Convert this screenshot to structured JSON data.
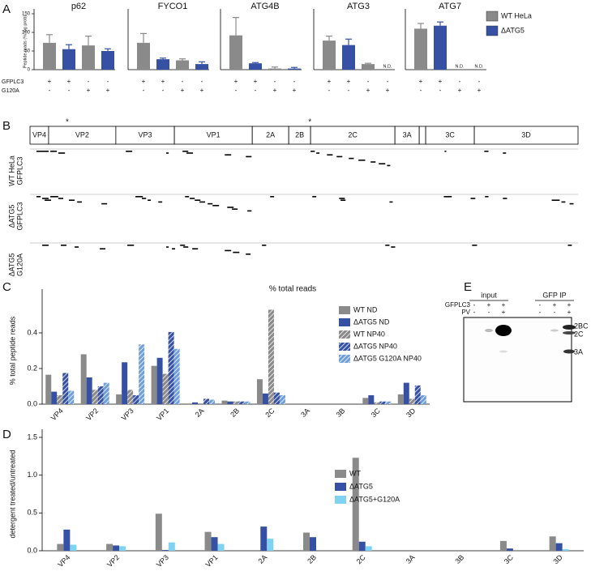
{
  "chart_data": [
    {
      "type": "small_multiples_bar",
      "panel_label": "A",
      "y_label": "Peptide reads (% log prob)",
      "ylim": [
        0,
        150
      ],
      "yticks": [
        0,
        50,
        100,
        150
      ],
      "series": [
        {
          "name": "WT HeLa",
          "color": "#8a8a8a"
        },
        {
          "name": "ΔATG5",
          "color": "#3651a3"
        }
      ],
      "conditions": [
        {
          "name": "GFPLC3",
          "values": [
            "+",
            "+",
            "-",
            "-"
          ]
        },
        {
          "name": "G120A",
          "values": [
            "-",
            "-",
            "+",
            "+"
          ]
        }
      ],
      "subplots": [
        {
          "title": "p62",
          "values": [
            [
              72,
              null,
              65,
              null
            ],
            [
              null,
              55,
              null,
              50
            ]
          ],
          "errors": [
            [
              22,
              null,
              25,
              null
            ],
            [
              null,
              12,
              null,
              6
            ]
          ]
        },
        {
          "title": "FYCO1",
          "values": [
            [
              72,
              null,
              25,
              null
            ],
            [
              null,
              28,
              null,
              15
            ]
          ],
          "errors": [
            [
              25,
              null,
              4,
              null
            ],
            [
              null,
              3,
              null,
              6
            ]
          ]
        },
        {
          "title": "ATG4B",
          "values": [
            [
              92,
              null,
              3,
              null
            ],
            [
              null,
              17,
              null,
              3
            ]
          ],
          "errors": [
            [
              48,
              null,
              4,
              null
            ],
            [
              null,
              2,
              null,
              3
            ]
          ]
        },
        {
          "title": "ATG3",
          "values": [
            [
              78,
              null,
              15,
              null
            ],
            [
              null,
              66,
              null,
              null
            ]
          ],
          "errors": [
            [
              12,
              null,
              2,
              null
            ],
            [
              null,
              16,
              null,
              null
            ]
          ],
          "value_labels": [
            [
              null,
              null,
              null,
              null
            ],
            [
              null,
              null,
              null,
              "N.D."
            ]
          ]
        },
        {
          "title": "ATG7",
          "values": [
            [
              110,
              null,
              null,
              null
            ],
            [
              null,
              118,
              null,
              null
            ]
          ],
          "errors": [
            [
              14,
              null,
              null,
              null
            ],
            [
              null,
              10,
              null,
              null
            ]
          ],
          "value_labels": [
            [
              null,
              null,
              "N.D.",
              null
            ],
            [
              null,
              null,
              null,
              "N.D."
            ]
          ]
        }
      ]
    },
    {
      "type": "genome_map",
      "panel_label": "B",
      "xlim": [
        0,
        2209
      ],
      "segments": [
        {
          "label": "VP4",
          "start": 0,
          "end": 75
        },
        {
          "label": "VP2",
          "start": 75,
          "end": 346
        },
        {
          "label": "VP3",
          "start": 346,
          "end": 582
        },
        {
          "label": "VP1",
          "start": 582,
          "end": 896
        },
        {
          "label": "2A",
          "start": 896,
          "end": 1043
        },
        {
          "label": "2B",
          "start": 1043,
          "end": 1131
        },
        {
          "label": "2C",
          "start": 1131,
          "end": 1471
        },
        {
          "label": "3A",
          "start": 1471,
          "end": 1569
        },
        {
          "label": null,
          "start": 1569,
          "end": 1595
        },
        {
          "label": "3C",
          "start": 1595,
          "end": 1791
        },
        {
          "label": "3D",
          "start": 1791,
          "end": 2209
        }
      ],
      "markers": [
        {
          "label": "*",
          "position": 150
        },
        {
          "label": "*",
          "position": 1128
        }
      ],
      "tracks": [
        {
          "label": [
            "WT HeLa",
            "GFPLC3"
          ],
          "peptides": [
            [
              26,
              75
            ],
            [
              82,
              108
            ],
            [
              114,
              141
            ],
            [
              386,
              412
            ],
            [
              549,
              559
            ],
            [
              615,
              638
            ],
            [
              631,
              657
            ],
            [
              785,
              811
            ],
            [
              870,
              893
            ],
            [
              1131,
              1148
            ],
            [
              1154,
              1167
            ],
            [
              1197,
              1220
            ],
            [
              1236,
              1259
            ],
            [
              1285,
              1305
            ],
            [
              1324,
              1351
            ],
            [
              1373,
              1393
            ],
            [
              1406,
              1432
            ],
            [
              1439,
              1452
            ],
            [
              1671,
              1678
            ],
            [
              1831,
              1848
            ],
            [
              1906,
              1919
            ]
          ]
        },
        {
          "label": [
            "ΔATG5",
            "GFPLC3"
          ],
          "peptides": [
            [
              26,
              43
            ],
            [
              49,
              75
            ],
            [
              59,
              85
            ],
            [
              82,
              114
            ],
            [
              114,
              134
            ],
            [
              157,
              180
            ],
            [
              190,
              209
            ],
            [
              288,
              311
            ],
            [
              425,
              455
            ],
            [
              451,
              468
            ],
            [
              474,
              487
            ],
            [
              517,
              533
            ],
            [
              625,
              641
            ],
            [
              644,
              664
            ],
            [
              664,
              687
            ],
            [
              683,
              706
            ],
            [
              716,
              736
            ],
            [
              736,
              762
            ],
            [
              795,
              821
            ],
            [
              814,
              837
            ],
            [
              876,
              893
            ],
            [
              968,
              984
            ],
            [
              1138,
              1154
            ],
            [
              1246,
              1269
            ],
            [
              1252,
              1272
            ],
            [
              1449,
              1462
            ],
            [
              1668,
              1700
            ],
            [
              1776,
              1795
            ],
            [
              1834,
              1848
            ],
            [
              1906,
              1923
            ],
            [
              2103,
              2135
            ],
            [
              2142,
              2158
            ],
            [
              2175,
              2191
            ]
          ]
        },
        {
          "label": [
            "ΔATG5",
            "G120A"
          ],
          "peptides": [
            [
              49,
              75
            ],
            [
              124,
              147
            ],
            [
              180,
              196
            ],
            [
              281,
              304
            ],
            [
              392,
              419
            ],
            [
              549,
              559
            ],
            [
              572,
              585
            ],
            [
              605,
              625
            ],
            [
              618,
              638
            ],
            [
              654,
              677
            ],
            [
              785,
              811
            ],
            [
              818,
              844
            ],
            [
              870,
              889
            ],
            [
              935,
              952
            ],
            [
              1432,
              1449
            ],
            [
              1455,
              1472
            ],
            [
              1782,
              1802
            ],
            [
              2168,
              2184
            ]
          ]
        }
      ]
    },
    {
      "type": "grouped_bar",
      "panel_label": "C",
      "title": "% total reads",
      "y_label": "% total peptide reads",
      "categories": [
        "VP4",
        "VP2",
        "VP3",
        "VP1",
        "2A",
        "2B",
        "2C",
        "3A",
        "3B",
        "3C",
        "3D"
      ],
      "ylim": [
        0,
        0.6
      ],
      "yticks": [
        {
          "value": 0,
          "label": "0.0"
        },
        0.2,
        0.4
      ],
      "series": [
        {
          "name": "WT ND",
          "color": "#8a8a8a",
          "hatch": false,
          "values": [
            0.165,
            0.28,
            0.055,
            0.215,
            0,
            0.02,
            0.14,
            0,
            0,
            0.035,
            0.055
          ]
        },
        {
          "name": "ΔATG5 ND",
          "color": "#3651a3",
          "hatch": false,
          "values": [
            0.07,
            0.15,
            0.235,
            0.26,
            0.01,
            0.015,
            0.06,
            0,
            0,
            0.05,
            0.12
          ]
        },
        {
          "name": "WT NP40",
          "color": "#8a8a8a",
          "hatch": true,
          "values": [
            0.05,
            0.08,
            0.08,
            0.17,
            0,
            0.015,
            0.53,
            0,
            0,
            0.01,
            0.03
          ]
        },
        {
          "name": "ΔATG5 NP40",
          "color": "#3651a3",
          "hatch": true,
          "values": [
            0.175,
            0.1,
            0.05,
            0.405,
            0.03,
            0.015,
            0.065,
            0,
            0,
            0.015,
            0.105
          ]
        },
        {
          "name": "ΔATG5 G120A NP40",
          "color": "#6f9fd8",
          "hatch": true,
          "values": [
            0.075,
            0.12,
            0.335,
            0.31,
            0.025,
            0.015,
            0.05,
            0,
            0,
            0.015,
            0.05
          ]
        }
      ]
    },
    {
      "type": "grouped_bar",
      "panel_label": "D",
      "y_label": "detergent treated/untreated",
      "categories": [
        "VP4",
        "VP2",
        "VP3",
        "VP1",
        "2A",
        "2B",
        "2C",
        "3A",
        "3B",
        "3C",
        "3D"
      ],
      "ylim": [
        0,
        1.5
      ],
      "yticks": [
        {
          "value": 0,
          "label": "0.0"
        },
        0.5,
        {
          "value": 1,
          "label": "1.0"
        },
        1.5
      ],
      "series": [
        {
          "name": "WT",
          "color": "#8a8a8a",
          "hatch": false,
          "values": [
            0.09,
            0.09,
            0.49,
            0.25,
            0,
            0.24,
            1.23,
            0,
            0,
            0.13,
            0.19
          ]
        },
        {
          "name": "ΔATG5",
          "color": "#3651a3",
          "hatch": false,
          "values": [
            0.28,
            0.07,
            0.01,
            0.18,
            0.32,
            0.18,
            0.12,
            0,
            0,
            0.03,
            0.1
          ]
        },
        {
          "name": "ΔATG5+G120A",
          "color": "#7fd3f0",
          "hatch": false,
          "values": [
            0.08,
            0.06,
            0.11,
            0.09,
            0.16,
            0,
            0.06,
            0,
            0,
            0,
            0.02
          ]
        }
      ]
    },
    {
      "type": "blot",
      "panel_label": "E",
      "groups": [
        "input",
        "GFP IP"
      ],
      "rows": [
        {
          "name": "GFPLC3",
          "values": [
            "-",
            "+",
            "+",
            "-",
            "+",
            "+"
          ]
        },
        {
          "name": "PV",
          "values": [
            "-",
            "-",
            "+",
            "-",
            "-",
            "+"
          ]
        }
      ],
      "band_labels": [
        "2BC",
        "2C",
        "3A"
      ]
    }
  ]
}
